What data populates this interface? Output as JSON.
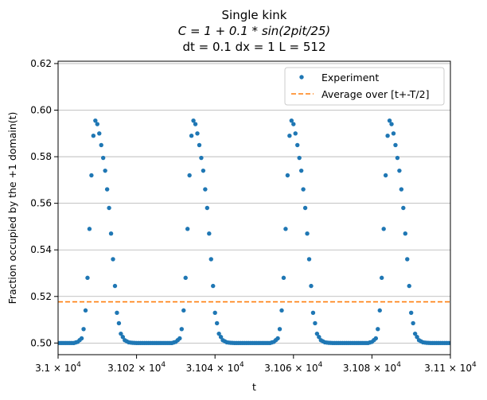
{
  "chart_data": {
    "type": "scatter",
    "title_lines": [
      "Single kink",
      "C = 1 + 0.1 * sin(2pit/25)",
      "dt = 0.1 dx = 1 L = 512"
    ],
    "xlabel": "t",
    "ylabel": "Fraction occupied by the +1 domain(t)",
    "xlim": [
      31000,
      31100
    ],
    "ylim": [
      0.495,
      0.621
    ],
    "x_ticks": [
      31000,
      31020,
      31040,
      31060,
      31080,
      31100
    ],
    "x_tick_labels": [
      {
        "mantissa": "3.1",
        "exponent": "4"
      },
      {
        "mantissa": "3.102",
        "exponent": "4"
      },
      {
        "mantissa": "3.104",
        "exponent": "4"
      },
      {
        "mantissa": "3.106",
        "exponent": "4"
      },
      {
        "mantissa": "3.108",
        "exponent": "4"
      },
      {
        "mantissa": "3.11",
        "exponent": "4"
      }
    ],
    "y_ticks": [
      0.5,
      0.52,
      0.54,
      0.56,
      0.58,
      0.6,
      0.62
    ],
    "y_tick_labels": [
      "0.50",
      "0.52",
      "0.54",
      "0.56",
      "0.58",
      "0.60",
      "0.62"
    ],
    "grid": "horizontal",
    "legend_position": "top-right",
    "period": 25,
    "series": [
      {
        "name": "Experiment",
        "style": "points",
        "color": "#1f77b4",
        "x_start": 31000,
        "x_step": 0.5,
        "profile_phase": [
          0,
          2,
          4,
          5,
          6,
          6.5,
          7,
          7.5,
          8,
          8.5,
          9,
          9.5,
          10,
          10.5,
          11,
          12,
          13,
          14,
          15,
          16,
          17,
          18,
          19,
          20,
          21,
          22,
          23,
          24,
          25
        ],
        "profile_values": [
          0.5,
          0.5,
          0.5,
          0.5005,
          0.502,
          0.506,
          0.514,
          0.528,
          0.549,
          0.572,
          0.589,
          0.5955,
          0.594,
          0.59,
          0.585,
          0.574,
          0.558,
          0.536,
          0.513,
          0.504,
          0.5012,
          0.5003,
          0.5001,
          0.5,
          0.5,
          0.5,
          0.5,
          0.5,
          0.5
        ]
      },
      {
        "name": "Average over [t+-T/2]",
        "style": "dashed-line",
        "color": "#ff7f0e",
        "value": 0.5177
      }
    ]
  }
}
